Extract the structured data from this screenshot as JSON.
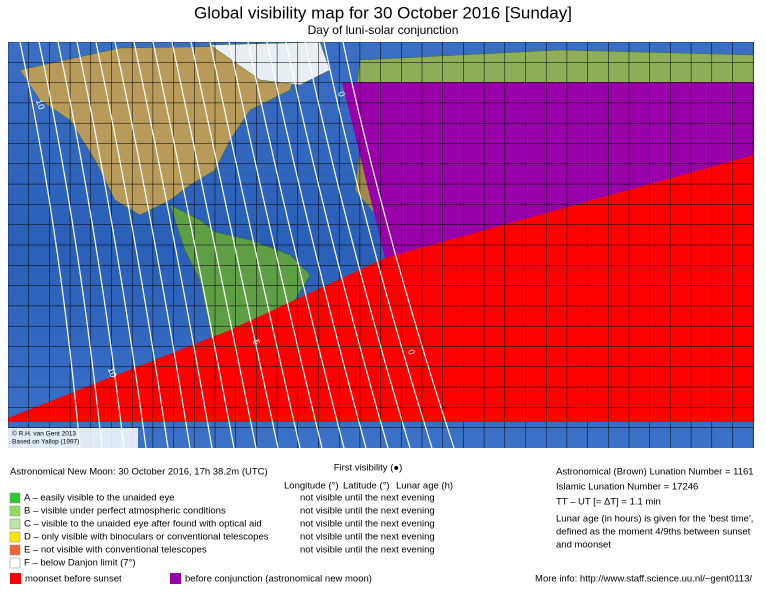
{
  "header": {
    "title": "Global visibility map for 30 October 2016 [Sunday]",
    "subtitle": "Day of luni-solar conjunction"
  },
  "map": {
    "credit": [
      "© R.H. van Gent 2013",
      "Based on Yallop (1997)"
    ],
    "contour_labels": [
      "10",
      "5",
      "0",
      "10",
      "0"
    ]
  },
  "info": {
    "new_moon": "Astronomical New Moon: 30 October 2016, 17h 38.2m (UTC)",
    "first_visibility": "First visibility (●)",
    "columns": [
      "Longitude (°)",
      "Latitude (°)",
      "Lunar age (h)"
    ],
    "brown_lunation": "Astronomical (Brown) Lunation Number = 1161",
    "islamic_lunation": "Islamic Lunation Number = 17246",
    "delta_t": "TT – UT [= ΔT] = 1.1 min",
    "note": [
      "Lunar age (in hours) is given for the 'best time',",
      "defined as the moment 4/9ths between sunset",
      "and moonset"
    ],
    "more_info": "More info: http://www.staff.science.uu.nl/~gent0113/"
  },
  "legend": [
    {
      "text": "A – easily visible to the unaided eye",
      "color": "#2ecc2e"
    },
    {
      "text": "B – visible under perfect atmospheric conditions",
      "color": "#8fdc5a"
    },
    {
      "text": "C – visible to the unaided eye after found with optical aid",
      "color": "#b9e6a8"
    },
    {
      "text": "D – only visible with binoculars or conventional telescopes",
      "color": "#ffe600"
    },
    {
      "text": "E – not visible with conventional telescopes",
      "color": "#f0663a"
    },
    {
      "text": "F – below Danjon limit (7°)",
      "color": "#ffffff"
    }
  ],
  "visibility": [
    "not visible until the next evening",
    "not visible until the next evening",
    "not visible until the next evening",
    "not visible until the next evening",
    "not visible until the next evening"
  ],
  "regions": [
    {
      "text": "moonset before sunset",
      "color": "#ff0000"
    },
    {
      "text": "before conjunction (astronomical new moon)",
      "color": "#9900aa"
    }
  ]
}
